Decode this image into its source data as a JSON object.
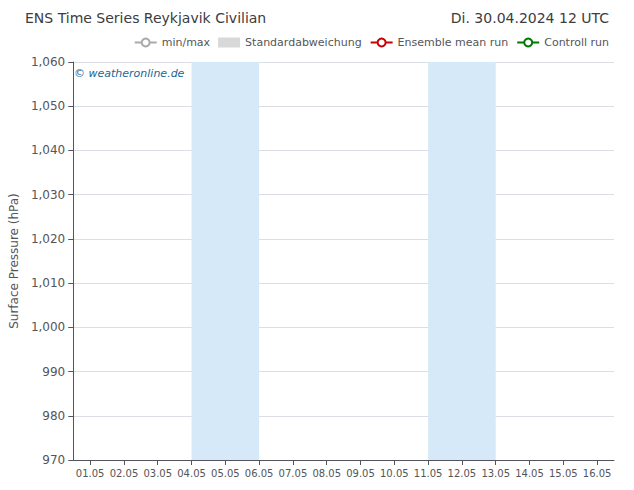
{
  "chart_data": {
    "type": "line",
    "title": "ENS Time Series Reykjavik Civilian",
    "subtitle": "Di. 30.04.2024 12 UTC",
    "ylabel": "Surface Pressure (hPa)",
    "categories": [
      "01.05",
      "02.05",
      "03.05",
      "04.05",
      "05.05",
      "06.05",
      "07.05",
      "08.05",
      "09.05",
      "10.05",
      "11.05",
      "12.05",
      "13.05",
      "14.05",
      "15.05",
      "16.05"
    ],
    "series": [
      {
        "name": "min/max",
        "color": "#aaaaaa",
        "values": [
          null,
          null,
          null,
          null,
          null,
          null,
          null,
          null,
          null,
          null,
          null,
          null,
          null,
          null,
          null,
          null
        ]
      },
      {
        "name": "Standardabweichung",
        "type": "bar",
        "color": "#d8d8d8",
        "values": [
          null,
          null,
          null,
          null,
          null,
          null,
          null,
          null,
          null,
          null,
          null,
          null,
          null,
          null,
          null,
          null
        ]
      },
      {
        "name": "Ensemble mean run",
        "color": "#cc0000",
        "values": [
          null,
          null,
          null,
          null,
          null,
          null,
          null,
          null,
          null,
          null,
          null,
          null,
          null,
          null,
          null,
          null
        ]
      },
      {
        "name": "Controll run",
        "color": "#007700",
        "values": [
          null,
          null,
          null,
          null,
          null,
          null,
          null,
          null,
          null,
          null,
          null,
          null,
          null,
          null,
          null,
          null
        ]
      }
    ],
    "bands": [
      {
        "from": "04.05",
        "to": "06.05",
        "color": "#d6e9f8"
      },
      {
        "from": "11.05",
        "to": "13.05",
        "color": "#d6e9f8"
      }
    ],
    "annotations": [
      {
        "text": "© weatheronline.de",
        "color": "#1a6699"
      }
    ],
    "ylim": [
      970,
      1060
    ],
    "yticks": [
      970,
      980,
      990,
      1000,
      1010,
      1020,
      1030,
      1040,
      1050,
      1060
    ],
    "grid": true,
    "legend": "upper right"
  }
}
